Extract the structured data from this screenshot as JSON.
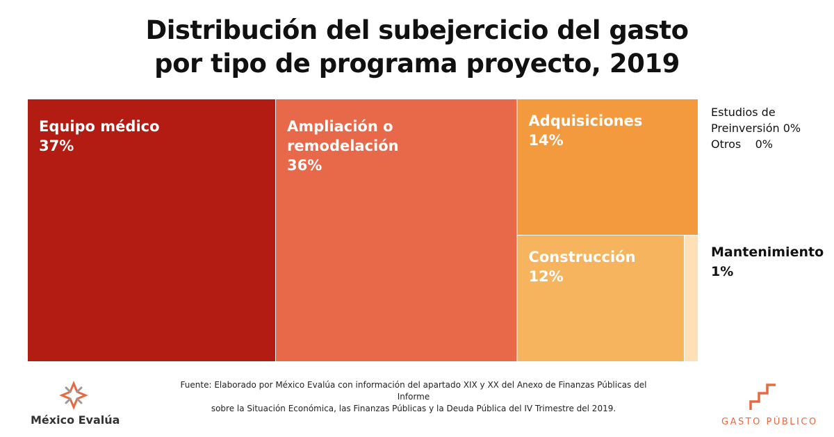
{
  "chart_data": {
    "type": "treemap",
    "title": "Distribución del subejercicio del gasto por tipo de programa proyecto, 2019",
    "title_lines": [
      "Distribución del subejercicio del gasto",
      "por tipo de programa proyecto, 2019"
    ],
    "unit": "%",
    "items": [
      {
        "name": "Equipo médico",
        "label_lines": [
          "Equipo médico"
        ],
        "value": 37,
        "value_label": "37%",
        "color": "#b31c12",
        "label_position": "inside"
      },
      {
        "name": "Ampliación o remodelación",
        "label_lines": [
          "Ampliación o",
          "remodelación"
        ],
        "value": 36,
        "value_label": "36%",
        "color": "#e8694a",
        "label_position": "inside"
      },
      {
        "name": "Adquisiciones",
        "label_lines": [
          "Adquisiciones"
        ],
        "value": 14,
        "value_label": "14%",
        "color": "#f39a3f",
        "label_position": "inside"
      },
      {
        "name": "Construcción",
        "label_lines": [
          "Construcción"
        ],
        "value": 12,
        "value_label": "12%",
        "color": "#f6b45e",
        "label_position": "inside"
      },
      {
        "name": "Mantenimiento",
        "label_lines": [
          "Mantenimiento"
        ],
        "value": 1,
        "value_label": "1%",
        "color": "#fde0b5",
        "label_position": "outside-right"
      }
    ],
    "zero_items": [
      {
        "name": "Estudios de Preinversión",
        "value": 0,
        "text_lines": [
          "Estudios de",
          "Preinversión 0%"
        ]
      },
      {
        "name": "Otros",
        "value": 0,
        "text_lines": [
          "Otros    0%"
        ]
      }
    ]
  },
  "footer": {
    "source_lines": [
      "Fuente: Elaborado por México Evalúa con información del apartado XIX y XX del Anexo de Finanzas Públicas del Informe",
      "sobre la Situación Económica, las Finanzas Públicas y la Deuda Pública del IV Trimestre del 2019."
    ],
    "logo_left": "México Evalúa",
    "logo_right": "GASTO PÚBLICO",
    "brand_color": "#e8693f"
  }
}
